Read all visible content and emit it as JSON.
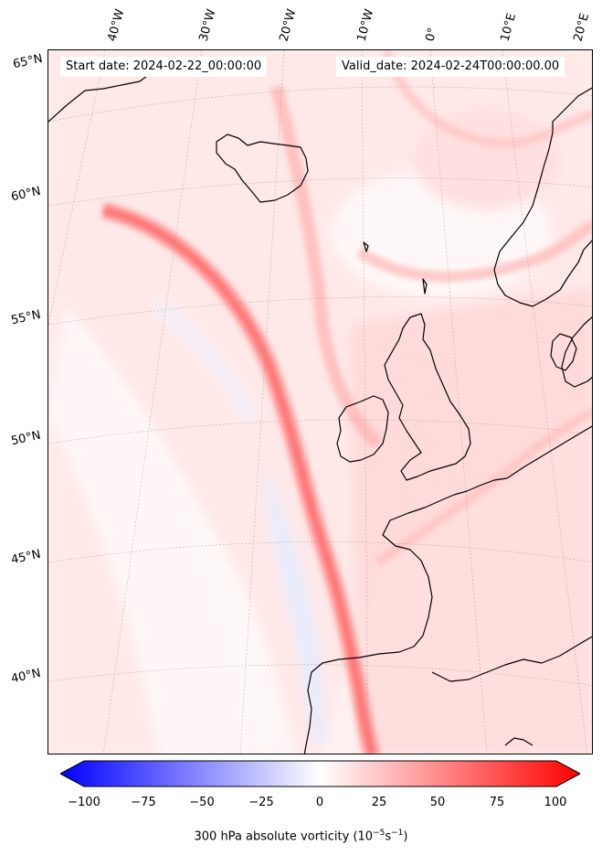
{
  "map": {
    "start_label": "Start date: 2024-02-22_00:00:00",
    "valid_label": "Valid_date: 2024-02-24T00:00:00.00",
    "lon_labels": [
      "40°W",
      "30°W",
      "20°W",
      "10°W",
      "0°",
      "10°E",
      "20°E"
    ],
    "lat_labels": [
      "65°N",
      "60°N",
      "55°N",
      "50°N",
      "45°N",
      "40°N"
    ],
    "field": "300 hPa absolute vorticity",
    "colors": {
      "negative_max": "#0000ff",
      "zero": "#ffffff",
      "positive_max": "#ff0000",
      "coastline": "#000000",
      "gridline": "#999999"
    }
  },
  "colorbar": {
    "ticks": [
      "−100",
      "−75",
      "−50",
      "−25",
      "0",
      "25",
      "50",
      "75",
      "100"
    ],
    "label_main": "300 hPa absolute vorticity (10",
    "label_exp1": "−5",
    "label_mid": "s",
    "label_exp2": "−1",
    "label_end": ")",
    "min": -100,
    "max": 100,
    "levels": 41,
    "extend": "both"
  }
}
